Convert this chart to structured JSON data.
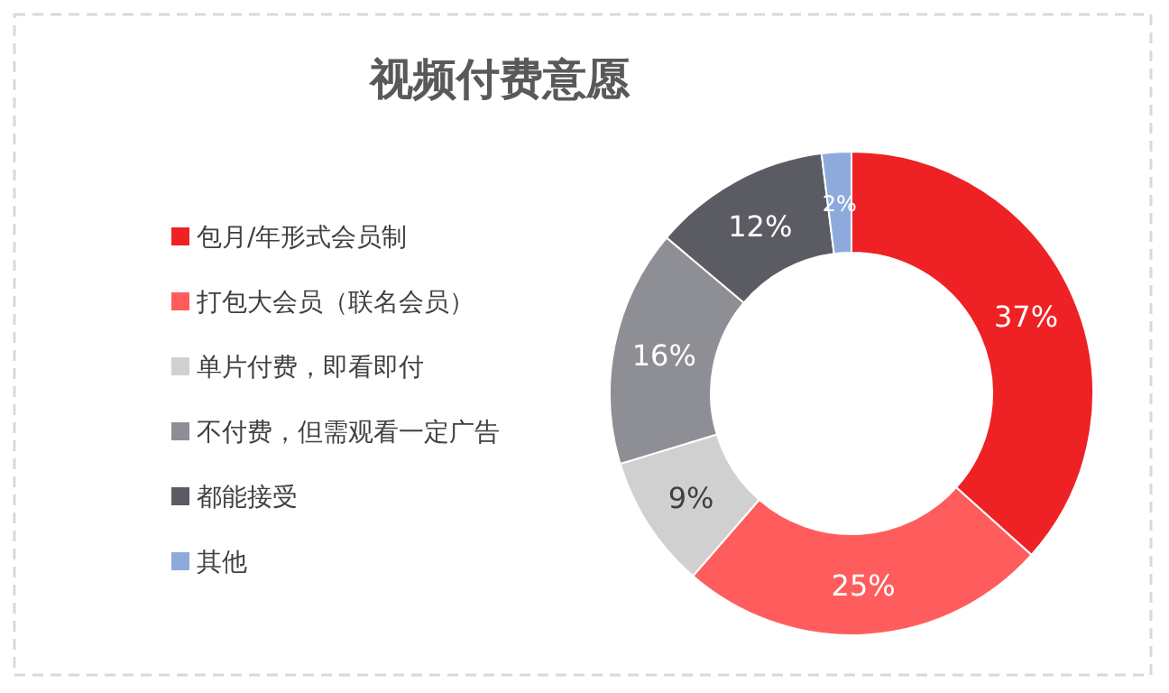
{
  "chart_data": {
    "type": "donut",
    "title": "视频付费意愿",
    "categories": [
      "包月/年形式会员制",
      "打包大会员（联名会员）",
      "单片付费，即看即付",
      "不付费，但需观看一定广告",
      "都能接受",
      "其他"
    ],
    "values": [
      37,
      25,
      9,
      16,
      12,
      2
    ],
    "colors": [
      "#ee2124",
      "#ff5d5d",
      "#d0d0d0",
      "#8e8e95",
      "#5b5b63",
      "#8eaadc"
    ],
    "value_labels": [
      "37%",
      "25%",
      "9%",
      "16%",
      "12%",
      "2%"
    ],
    "legend": "left"
  }
}
